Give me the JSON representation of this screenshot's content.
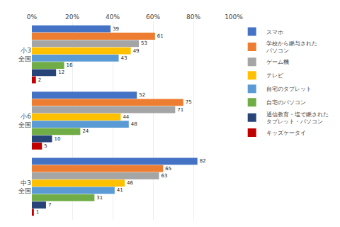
{
  "chart_data": {
    "type": "bar",
    "orientation": "horizontal",
    "categories": [
      "小3\n全国",
      "小6\n全国",
      "中3\n全国"
    ],
    "series": [
      {
        "name": "スマホ",
        "color": "#4472C4",
        "values": [
          39,
          52,
          82
        ]
      },
      {
        "name": "学校から㛂与された\nパソコン",
        "color": "#ED7D31",
        "values": [
          61,
          75,
          65
        ]
      },
      {
        "name": "ゲーム機",
        "color": "#A5A5A5",
        "values": [
          53,
          71,
          63
        ]
      },
      {
        "name": "テレビ",
        "color": "#FFC000",
        "values": [
          49,
          44,
          46
        ]
      },
      {
        "name": "自宅のタブレット",
        "color": "#5B9BD5",
        "values": [
          43,
          48,
          41
        ]
      },
      {
        "name": "自宅のパソコン",
        "color": "#70AD47",
        "values": [
          16,
          24,
          31
        ]
      },
      {
        "name": "通信教育・塩で㛂された\nタブレット・パソコン",
        "color": "#264478",
        "values": [
          12,
          10,
          7
        ]
      },
      {
        "name": "キッズケータイ",
        "color": "#C00000",
        "values": [
          2,
          5,
          1
        ]
      }
    ],
    "xlim": [
      0,
      100
    ],
    "xticks": [
      {
        "value": 0,
        "label": "0%"
      },
      {
        "value": 20,
        "label": "20%"
      },
      {
        "value": 40,
        "label": "40%"
      },
      {
        "value": 60,
        "label": "60%"
      },
      {
        "value": 80,
        "label": "80%"
      },
      {
        "value": 100,
        "label": "100%"
      }
    ],
    "grid": true,
    "legend": "upper right",
    "data_labels": true
  }
}
